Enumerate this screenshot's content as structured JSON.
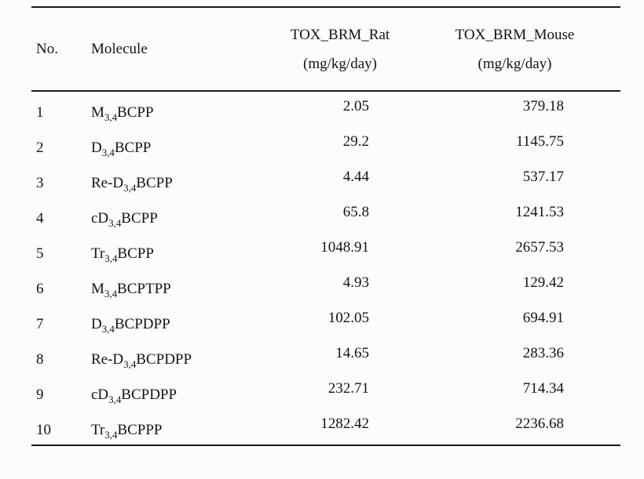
{
  "table": {
    "headers": {
      "no": "No.",
      "molecule": "Molecule",
      "rat_line1": "TOX_BRM_Rat",
      "rat_line2": "(mg/kg/day)",
      "mouse_line1": "TOX_BRM_Mouse",
      "mouse_line2": "(mg/kg/day)"
    },
    "rows": [
      {
        "no": "1",
        "molecule": {
          "prefix": "M",
          "sub": "3,4",
          "suffix": "BCPP"
        },
        "rat": "2.05",
        "mouse": "379.18"
      },
      {
        "no": "2",
        "molecule": {
          "prefix": "D",
          "sub": "3,4",
          "suffix": "BCPP"
        },
        "rat": "29.2",
        "mouse": "1145.75"
      },
      {
        "no": "3",
        "molecule": {
          "prefix": "Re-D",
          "sub": "3,4",
          "suffix": "BCPP"
        },
        "rat": "4.44",
        "mouse": "537.17"
      },
      {
        "no": "4",
        "molecule": {
          "prefix": "cD",
          "sub": "3,4",
          "suffix": "BCPP"
        },
        "rat": "65.8",
        "mouse": "1241.53"
      },
      {
        "no": "5",
        "molecule": {
          "prefix": "Tr",
          "sub": "3,4",
          "suffix": "BCPP"
        },
        "rat": "1048.91",
        "mouse": "2657.53"
      },
      {
        "no": "6",
        "molecule": {
          "prefix": "M",
          "sub": "3,4",
          "suffix": "BCPTPP"
        },
        "rat": "4.93",
        "mouse": "129.42"
      },
      {
        "no": "7",
        "molecule": {
          "prefix": "D",
          "sub": "3,4",
          "suffix": "BCPDPP"
        },
        "rat": "102.05",
        "mouse": "694.91"
      },
      {
        "no": "8",
        "molecule": {
          "prefix": "Re-D",
          "sub": "3,4",
          "suffix": "BCPDPP"
        },
        "rat": "14.65",
        "mouse": "283.36"
      },
      {
        "no": "9",
        "molecule": {
          "prefix": "cD",
          "sub": "3,4",
          "suffix": "BCPDPP"
        },
        "rat": "232.71",
        "mouse": "714.34"
      },
      {
        "no": "10",
        "molecule": {
          "prefix": "Tr",
          "sub": "3,4",
          "suffix": "BCPPP"
        },
        "rat": "1282.42",
        "mouse": "2236.68"
      }
    ]
  }
}
